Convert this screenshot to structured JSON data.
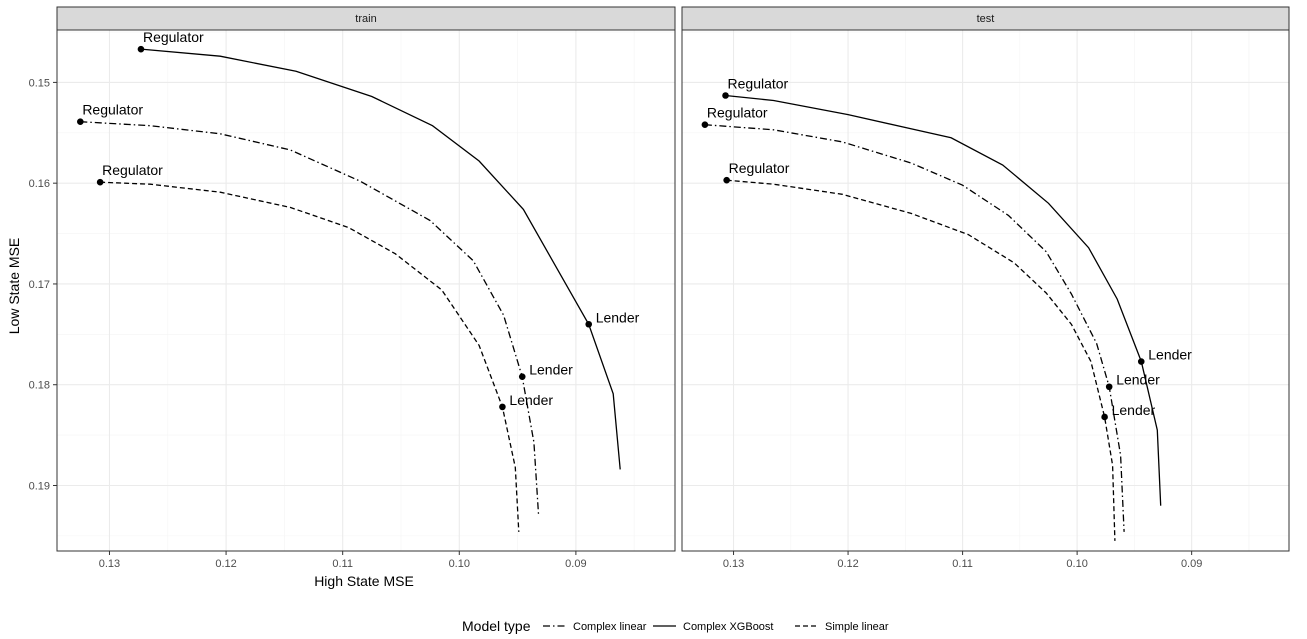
{
  "chart_data": {
    "type": "line",
    "xlabel": "High State MSE",
    "ylabel": "Low State MSE",
    "x_reversed": true,
    "y_reversed": true,
    "xlim": [
      0.1345,
      0.0815
    ],
    "ylim": [
      0.1448,
      0.1965
    ],
    "x_ticks": [
      0.13,
      0.12,
      0.11,
      0.1,
      0.09
    ],
    "x_tick_labels": [
      "0.13",
      "0.12",
      "0.11",
      "0.10",
      "0.09"
    ],
    "y_ticks": [
      0.15,
      0.16,
      0.17,
      0.18,
      0.19
    ],
    "y_tick_labels": [
      "0.15",
      "0.16",
      "0.17",
      "0.18",
      "0.19"
    ],
    "grid": true,
    "legend": {
      "title": "Model type",
      "position": "bottom",
      "entries": [
        {
          "label": "Complex linear",
          "linetype": "dotdash"
        },
        {
          "label": "Complex XGBoost",
          "linetype": "solid"
        },
        {
          "label": "Simple linear",
          "linetype": "dashed"
        }
      ]
    },
    "panels": [
      {
        "title": "train",
        "series": [
          {
            "name": "Complex linear",
            "points": [
              [
                0.1325,
                0.1539
              ],
              [
                0.1265,
                0.1543
              ],
              [
                0.1205,
                0.1551
              ],
              [
                0.1145,
                0.1567
              ],
              [
                0.1085,
                0.1598
              ],
              [
                0.1025,
                0.1637
              ],
              [
                0.0988,
                0.1677
              ],
              [
                0.0962,
                0.1731
              ],
              [
                0.0946,
                0.1792
              ],
              [
                0.0936,
                0.1857
              ],
              [
                0.0932,
                0.193
              ]
            ]
          },
          {
            "name": "Complex XGBoost",
            "points": [
              [
                0.1273,
                0.1467
              ],
              [
                0.1205,
                0.1474
              ],
              [
                0.114,
                0.1489
              ],
              [
                0.1075,
                0.1514
              ],
              [
                0.1023,
                0.1543
              ],
              [
                0.0983,
                0.1578
              ],
              [
                0.0945,
                0.1626
              ],
              [
                0.092,
                0.1677
              ],
              [
                0.0889,
                0.174
              ],
              [
                0.0868,
                0.1809
              ],
              [
                0.0862,
                0.1884
              ]
            ]
          },
          {
            "name": "Simple linear",
            "points": [
              [
                0.1308,
                0.1599
              ],
              [
                0.1265,
                0.1601
              ],
              [
                0.1205,
                0.1609
              ],
              [
                0.1145,
                0.1624
              ],
              [
                0.1095,
                0.1644
              ],
              [
                0.1055,
                0.167
              ],
              [
                0.1015,
                0.1706
              ],
              [
                0.0983,
                0.1761
              ],
              [
                0.0963,
                0.1822
              ],
              [
                0.0952,
                0.1882
              ],
              [
                0.0949,
                0.1946
              ]
            ]
          }
        ],
        "annotations": [
          {
            "text": "Regulator",
            "x": 0.1273,
            "y": 0.1467
          },
          {
            "text": "Regulator",
            "x": 0.1325,
            "y": 0.1539
          },
          {
            "text": "Regulator",
            "x": 0.1308,
            "y": 0.1599
          },
          {
            "text": "Lender",
            "x": 0.0889,
            "y": 0.174
          },
          {
            "text": "Lender",
            "x": 0.0946,
            "y": 0.1792
          },
          {
            "text": "Lender",
            "x": 0.0963,
            "y": 0.1822
          }
        ]
      },
      {
        "title": "test",
        "series": [
          {
            "name": "Complex linear",
            "points": [
              [
                0.1325,
                0.1542
              ],
              [
                0.1265,
                0.1547
              ],
              [
                0.1205,
                0.1559
              ],
              [
                0.1145,
                0.158
              ],
              [
                0.11,
                0.1602
              ],
              [
                0.106,
                0.1632
              ],
              [
                0.1027,
                0.1668
              ],
              [
                0.1005,
                0.171
              ],
              [
                0.0983,
                0.1759
              ],
              [
                0.0972,
                0.1802
              ],
              [
                0.0962,
                0.187
              ],
              [
                0.0959,
                0.1946
              ]
            ]
          },
          {
            "name": "Complex XGBoost",
            "points": [
              [
                0.1307,
                0.1513
              ],
              [
                0.1265,
                0.1518
              ],
              [
                0.12,
                0.1532
              ],
              [
                0.111,
                0.1555
              ],
              [
                0.1065,
                0.1582
              ],
              [
                0.1025,
                0.162
              ],
              [
                0.099,
                0.1664
              ],
              [
                0.0965,
                0.1715
              ],
              [
                0.0944,
                0.1777
              ],
              [
                0.093,
                0.1845
              ],
              [
                0.0927,
                0.192
              ]
            ]
          },
          {
            "name": "Simple linear",
            "points": [
              [
                0.1306,
                0.1597
              ],
              [
                0.1265,
                0.1601
              ],
              [
                0.1205,
                0.1611
              ],
              [
                0.1145,
                0.163
              ],
              [
                0.1095,
                0.1651
              ],
              [
                0.1055,
                0.1679
              ],
              [
                0.1027,
                0.1709
              ],
              [
                0.1005,
                0.174
              ],
              [
                0.0988,
                0.1777
              ],
              [
                0.0976,
                0.1832
              ],
              [
                0.0969,
                0.188
              ],
              [
                0.0967,
                0.1955
              ]
            ]
          }
        ],
        "annotations": [
          {
            "text": "Regulator",
            "x": 0.1307,
            "y": 0.1513
          },
          {
            "text": "Regulator",
            "x": 0.1325,
            "y": 0.1542
          },
          {
            "text": "Regulator",
            "x": 0.1306,
            "y": 0.1597
          },
          {
            "text": "Lender",
            "x": 0.0944,
            "y": 0.1777
          },
          {
            "text": "Lender",
            "x": 0.0972,
            "y": 0.1802
          },
          {
            "text": "Lender",
            "x": 0.0976,
            "y": 0.1832
          }
        ]
      }
    ]
  }
}
